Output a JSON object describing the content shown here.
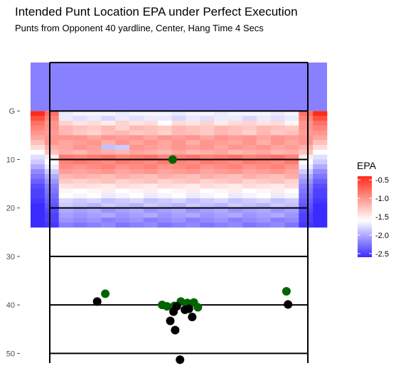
{
  "chart_data": {
    "type": "heatmap",
    "title": "Intended Punt Location EPA under Perfect Execution",
    "subtitle": "Punts from Opponent 40 yardline, Center, Hang Time 4 Secs",
    "xlabel": "",
    "ylabel": "",
    "y_axis": {
      "range": [
        -10,
        52
      ],
      "ticks": [
        {
          "value": 0,
          "label": "G"
        },
        {
          "value": 10,
          "label": "10"
        },
        {
          "value": 20,
          "label": "20"
        },
        {
          "value": 30,
          "label": "30"
        },
        {
          "value": 40,
          "label": "40"
        },
        {
          "value": 50,
          "label": "50"
        }
      ]
    },
    "legend": {
      "title": "EPA",
      "placement": "right",
      "range": [
        -2.6,
        -0.4
      ],
      "ticks": [
        {
          "value": -0.5,
          "label": "-0.5"
        },
        {
          "value": -1.0,
          "label": "-1.0"
        },
        {
          "value": -1.5,
          "label": "-1.5"
        },
        {
          "value": -2.0,
          "label": "-2.0"
        },
        {
          "value": -2.5,
          "label": "-2.5"
        }
      ],
      "colors": {
        "high": "#ff2a1a",
        "mid": "#ffffff",
        "low": "#3a2bff"
      }
    },
    "endzone_epa": -2.2,
    "heatmap": {
      "columns": 21,
      "yard_start": 0,
      "yard_step": 1,
      "rows": [
        [
          -0.4,
          -0.8,
          -1.7,
          -1.65,
          -1.65,
          -1.65,
          -1.7,
          -1.65,
          -1.65,
          -1.65,
          -1.7,
          -1.65,
          -1.65,
          -1.7,
          -1.65,
          -1.65,
          -1.65,
          -1.7,
          -1.65,
          -0.8,
          -0.4
        ],
        [
          -0.6,
          -0.9,
          -1.7,
          -1.75,
          -1.7,
          -1.8,
          -1.7,
          -1.75,
          -1.7,
          -1.7,
          -1.8,
          -1.7,
          -1.75,
          -1.7,
          -1.7,
          -1.8,
          -1.7,
          -1.75,
          -1.7,
          -0.9,
          -0.6
        ],
        [
          -0.8,
          -1.0,
          -1.35,
          -1.45,
          -1.4,
          -1.5,
          -1.35,
          -1.45,
          -1.4,
          -1.6,
          -1.4,
          -1.45,
          -1.35,
          -1.5,
          -1.4,
          -1.35,
          -1.45,
          -1.4,
          -1.55,
          -1.0,
          -0.8
        ],
        [
          -0.9,
          -1.0,
          -1.2,
          -1.25,
          -1.3,
          -1.2,
          -1.35,
          -1.2,
          -1.25,
          -1.3,
          -1.2,
          -1.25,
          -1.3,
          -1.2,
          -1.25,
          -1.3,
          -1.2,
          -1.25,
          -1.3,
          -1.0,
          -0.9
        ],
        [
          -1.0,
          -1.05,
          -1.2,
          -1.3,
          -1.35,
          -1.25,
          -1.2,
          -1.3,
          -1.25,
          -1.35,
          -1.2,
          -1.25,
          -1.3,
          -1.2,
          -1.25,
          -1.35,
          -1.2,
          -1.3,
          -1.25,
          -1.05,
          -1.0
        ],
        [
          -1.1,
          -1.0,
          -1.0,
          -1.0,
          -1.1,
          -1.0,
          -1.05,
          -1.0,
          -1.1,
          -1.0,
          -1.05,
          -1.0,
          -1.1,
          -1.0,
          -1.05,
          -1.0,
          -1.1,
          -1.0,
          -1.05,
          -1.0,
          -1.1
        ],
        [
          -1.25,
          -1.0,
          -1.1,
          -1.05,
          -1.0,
          -1.15,
          -1.0,
          -1.1,
          -1.0,
          -1.1,
          -1.0,
          -1.15,
          -1.0,
          -1.05,
          -1.1,
          -1.0,
          -1.15,
          -1.0,
          -1.1,
          -1.0,
          -1.25
        ],
        [
          -1.4,
          -1.15,
          -1.1,
          -1.0,
          -1.05,
          -1.9,
          -1.85,
          -1.0,
          -1.05,
          -1.1,
          -1.0,
          -1.05,
          -1.0,
          -1.1,
          -1.0,
          -1.05,
          -1.0,
          -1.1,
          -1.05,
          -1.15,
          -1.4
        ],
        [
          -1.6,
          -1.25,
          -1.15,
          -1.2,
          -1.1,
          -1.15,
          -1.2,
          -1.1,
          -1.15,
          -1.2,
          -1.1,
          -1.2,
          -1.15,
          -1.1,
          -1.2,
          -1.15,
          -1.1,
          -1.2,
          -1.15,
          -1.25,
          -1.6
        ],
        [
          -1.75,
          -1.5,
          -0.85,
          -0.9,
          -0.85,
          -0.8,
          -0.9,
          -0.85,
          -0.8,
          -0.9,
          -0.85,
          -0.8,
          -0.9,
          -0.85,
          -0.8,
          -0.9,
          -0.85,
          -0.8,
          -0.9,
          -1.5,
          -1.75
        ],
        [
          -1.85,
          -1.6,
          -0.9,
          -0.85,
          -0.9,
          -0.95,
          -0.85,
          -0.9,
          -0.95,
          -0.85,
          -0.9,
          -0.95,
          -0.85,
          -0.9,
          -0.95,
          -0.85,
          -0.9,
          -0.95,
          -0.85,
          -1.6,
          -1.85
        ],
        [
          -2.0,
          -1.7,
          -0.95,
          -1.0,
          -0.95,
          -0.9,
          -1.0,
          -0.95,
          -0.9,
          -1.0,
          -0.95,
          -0.9,
          -1.0,
          -0.95,
          -0.9,
          -1.0,
          -0.95,
          -0.9,
          -1.0,
          -1.7,
          -2.0
        ],
        [
          -2.15,
          -1.85,
          -1.05,
          -1.1,
          -1.05,
          -1.0,
          -1.1,
          -1.05,
          -1.0,
          -1.1,
          -1.05,
          -1.0,
          -1.1,
          -1.05,
          -1.0,
          -1.1,
          -1.05,
          -1.0,
          -1.1,
          -1.85,
          -2.15
        ],
        [
          -2.25,
          -2.0,
          -1.2,
          -1.15,
          -1.2,
          -1.25,
          -1.15,
          -1.2,
          -1.25,
          -1.15,
          -1.2,
          -1.25,
          -1.15,
          -1.2,
          -1.25,
          -1.15,
          -1.2,
          -1.25,
          -1.15,
          -2.0,
          -2.25
        ],
        [
          -2.35,
          -2.1,
          -1.3,
          -1.35,
          -1.3,
          -1.25,
          -1.35,
          -1.3,
          -1.25,
          -1.35,
          -1.3,
          -1.25,
          -1.35,
          -1.3,
          -1.25,
          -1.35,
          -1.3,
          -1.25,
          -1.35,
          -2.1,
          -2.35
        ],
        [
          -2.45,
          -2.2,
          -1.45,
          -1.4,
          -1.45,
          -1.5,
          -1.4,
          -1.45,
          -1.5,
          -1.4,
          -1.45,
          -1.5,
          -1.4,
          -1.45,
          -1.5,
          -1.4,
          -1.45,
          -1.5,
          -1.4,
          -2.2,
          -2.45
        ],
        [
          -2.5,
          -2.25,
          -1.55,
          -1.6,
          -1.55,
          -1.5,
          -1.6,
          -1.55,
          -1.5,
          -1.6,
          -1.55,
          -1.5,
          -1.6,
          -1.55,
          -1.5,
          -1.6,
          -1.55,
          -1.5,
          -1.6,
          -2.25,
          -2.5
        ],
        [
          -2.5,
          -2.3,
          -1.6,
          -1.65,
          -1.6,
          -1.7,
          -1.65,
          -1.6,
          -1.7,
          -1.65,
          -1.6,
          -1.7,
          -1.65,
          -1.6,
          -1.7,
          -1.65,
          -1.6,
          -1.7,
          -1.65,
          -2.3,
          -2.5
        ],
        [
          -2.55,
          -2.35,
          -1.8,
          -1.85,
          -1.8,
          -1.9,
          -1.85,
          -1.8,
          -1.9,
          -1.85,
          -1.8,
          -1.9,
          -1.85,
          -1.8,
          -1.9,
          -1.85,
          -1.8,
          -1.9,
          -1.85,
          -2.35,
          -2.55
        ],
        [
          -2.6,
          -2.4,
          -1.85,
          -1.9,
          -1.95,
          -1.85,
          -1.9,
          -1.95,
          -1.85,
          -1.9,
          -1.95,
          -1.85,
          -1.9,
          -1.95,
          -1.85,
          -1.9,
          -1.95,
          -1.85,
          -1.9,
          -2.4,
          -2.6
        ],
        [
          -2.6,
          -2.45,
          -2.0,
          -2.05,
          -2.0,
          -2.1,
          -2.05,
          -2.0,
          -2.1,
          -2.05,
          -2.0,
          -2.1,
          -2.05,
          -2.0,
          -2.1,
          -2.05,
          -2.0,
          -2.1,
          -2.05,
          -2.45,
          -2.6
        ],
        [
          -2.65,
          -2.5,
          -2.05,
          -2.1,
          -2.05,
          -2.0,
          -2.1,
          -2.05,
          -2.0,
          -2.1,
          -2.05,
          -2.0,
          -2.1,
          -2.05,
          -2.0,
          -2.1,
          -2.05,
          -2.0,
          -2.1,
          -2.5,
          -2.65
        ],
        [
          -2.65,
          -2.5,
          -2.1,
          -2.15,
          -2.1,
          -2.2,
          -2.15,
          -2.1,
          -2.2,
          -2.15,
          -2.1,
          -2.2,
          -2.15,
          -2.1,
          -2.2,
          -2.15,
          -2.1,
          -2.2,
          -2.15,
          -2.5,
          -2.65
        ],
        [
          -2.7,
          -2.55,
          -2.2,
          -2.25,
          -2.2,
          -2.15,
          -2.25,
          -2.2,
          -2.15,
          -2.25,
          -2.2,
          -2.15,
          -2.25,
          -2.2,
          -2.15,
          -2.25,
          -2.2,
          -2.15,
          -2.25,
          -2.55,
          -2.7
        ]
      ]
    },
    "field_lines_yards": [
      -10,
      0,
      10,
      20,
      30,
      40,
      50
    ],
    "punts": [
      {
        "x": 7.2,
        "y": 37.7,
        "kind": "intended",
        "color": "#006400"
      },
      {
        "x": 6.2,
        "y": 39.3,
        "kind": "actual",
        "color": "#000000"
      },
      {
        "x": 29.5,
        "y": 37.2,
        "kind": "intended",
        "color": "#006400"
      },
      {
        "x": 29.7,
        "y": 39.9,
        "kind": "actual",
        "color": "#000000"
      },
      {
        "x": 15.5,
        "y": 10.0,
        "kind": "intended",
        "color": "#006400"
      },
      {
        "x": 14.2,
        "y": 40.0,
        "kind": "intended",
        "color": "#006400"
      },
      {
        "x": 14.8,
        "y": 40.3,
        "kind": "intended",
        "color": "#006400"
      },
      {
        "x": 15.7,
        "y": 40.2,
        "kind": "intended",
        "color": "#006400"
      },
      {
        "x": 16.5,
        "y": 39.3,
        "kind": "intended",
        "color": "#006400"
      },
      {
        "x": 17.3,
        "y": 39.6,
        "kind": "intended",
        "color": "#006400"
      },
      {
        "x": 18.1,
        "y": 39.5,
        "kind": "intended",
        "color": "#006400"
      },
      {
        "x": 18.6,
        "y": 40.5,
        "kind": "intended",
        "color": "#006400"
      },
      {
        "x": 16.0,
        "y": 40.3,
        "kind": "actual",
        "color": "#000000"
      },
      {
        "x": 15.6,
        "y": 41.4,
        "kind": "actual",
        "color": "#000000"
      },
      {
        "x": 17.0,
        "y": 41.0,
        "kind": "actual",
        "color": "#000000"
      },
      {
        "x": 17.5,
        "y": 40.8,
        "kind": "actual",
        "color": "#000000"
      },
      {
        "x": 15.2,
        "y": 43.3,
        "kind": "actual",
        "color": "#000000"
      },
      {
        "x": 17.9,
        "y": 42.5,
        "kind": "actual",
        "color": "#000000"
      },
      {
        "x": 15.8,
        "y": 45.2,
        "kind": "actual",
        "color": "#000000"
      },
      {
        "x": 16.4,
        "y": 51.3,
        "kind": "actual",
        "color": "#000000"
      }
    ],
    "x_range": [
      -2,
      34.5
    ]
  }
}
